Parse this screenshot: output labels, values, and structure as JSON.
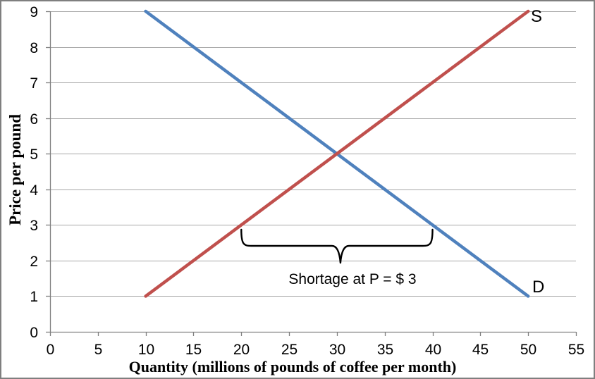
{
  "figure": {
    "background": "#ffffff",
    "border_color": "#7f7f7f"
  },
  "chart_data": {
    "type": "line",
    "title": "",
    "xlabel": "Quantity (millions of pounds of coffee per month)",
    "ylabel": "Price per pound",
    "xlim": [
      0,
      55
    ],
    "ylim": [
      0,
      9
    ],
    "xticks": [
      0,
      5,
      10,
      15,
      20,
      25,
      30,
      35,
      40,
      45,
      50,
      55
    ],
    "yticks": [
      0,
      1,
      2,
      3,
      4,
      5,
      6,
      7,
      8,
      9
    ],
    "grid": "horizontal-only",
    "legend": "none",
    "axis_color": "#808080",
    "gridline_color": "#a6a6a6",
    "tick_label_color": "#000000",
    "series": [
      {
        "name": "demand",
        "label": "D",
        "color": "#4f81bd",
        "points": [
          [
            10,
            9
          ],
          [
            50,
            1
          ]
        ]
      },
      {
        "name": "supply",
        "label": "S",
        "color": "#c0504d",
        "points": [
          [
            10,
            1
          ],
          [
            50,
            9
          ]
        ]
      }
    ],
    "equilibrium": {
      "quantity": 30,
      "price": 5
    },
    "annotation": {
      "text": "Shortage at P = $ 3",
      "brace_from_quantity": 20,
      "brace_to_quantity": 40,
      "brace_midpoint_quantity": 30,
      "below_price": 3,
      "brace_color": "#000000"
    }
  }
}
